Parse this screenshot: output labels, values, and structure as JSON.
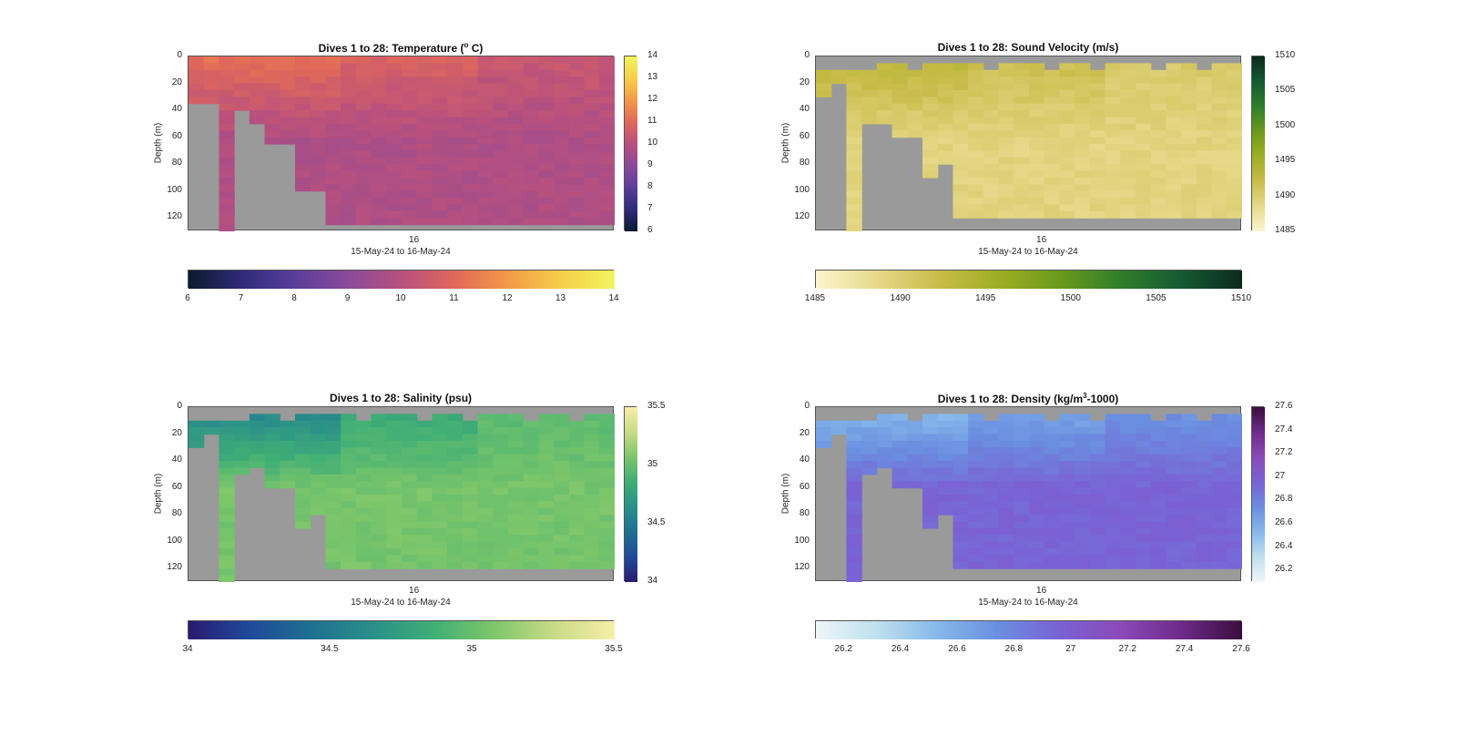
{
  "chart_data": [
    {
      "type": "heatmap",
      "title_main": "Dives 1 to 28: Temperature (",
      "title_sup": "o",
      "title_end": " C)",
      "ylabel": "Depth (m)",
      "xtick": "16",
      "xsub": "15-May-24 to 16-May-24",
      "yticks": [
        "0",
        "20",
        "40",
        "60",
        "80",
        "100",
        "120"
      ],
      "ylim": [
        0,
        130
      ],
      "vticks": [
        "14",
        "13",
        "12",
        "11",
        "10",
        "9",
        "8",
        "7",
        "6"
      ],
      "hticks": [
        "6",
        "7",
        "8",
        "9",
        "10",
        "11",
        "12",
        "13",
        "14"
      ],
      "clim": [
        6,
        14
      ],
      "colormap": [
        "#0a1a2e",
        "#2f2a7a",
        "#5a3e9a",
        "#8a4a9a",
        "#b8507e",
        "#e0685a",
        "#f29a48",
        "#f6cf4a",
        "#f2f45e"
      ],
      "surface": [
        11.2,
        10.8,
        10.4
      ],
      "deep": 9.8,
      "bottom": [
        36,
        36,
        130,
        40,
        52,
        64,
        64,
        100,
        98,
        126,
        126,
        126,
        126,
        126,
        126,
        126,
        126,
        126,
        126,
        126,
        126,
        126,
        126,
        126,
        126,
        126,
        126,
        126
      ],
      "top": [
        0,
        0,
        0,
        0,
        0,
        0,
        0,
        0,
        0,
        0,
        0,
        0,
        0,
        0,
        0,
        0,
        0,
        0,
        0,
        0,
        0,
        0,
        0,
        0,
        0,
        0,
        0,
        0
      ]
    },
    {
      "type": "heatmap",
      "title_main": "Dives 1 to 28: Sound Velocity (m/s)",
      "title_sup": "",
      "title_end": "",
      "ylabel": "Depth (m)",
      "xtick": "16",
      "xsub": "15-May-24 to 16-May-24",
      "yticks": [
        "0",
        "20",
        "40",
        "60",
        "80",
        "100",
        "120"
      ],
      "ylim": [
        0,
        130
      ],
      "vticks": [
        "1510",
        "1505",
        "1500",
        "1495",
        "1490",
        "1485"
      ],
      "hticks": [
        "1485",
        "1490",
        "1495",
        "1500",
        "1505",
        "1510"
      ],
      "clim": [
        1485,
        1510
      ],
      "colormap": [
        "#fbf5cf",
        "#e6d98a",
        "#c9bc4a",
        "#9eae24",
        "#6a9a1c",
        "#2f7e2a",
        "#155a32",
        "#0c2a1c"
      ],
      "surface": [
        1493.5,
        1492.0,
        1490.5
      ],
      "deep": 1489.2,
      "bottom": [
        30,
        20,
        130,
        52,
        50,
        62,
        62,
        90,
        82,
        118,
        120,
        118,
        120,
        118,
        120,
        118,
        120,
        118,
        120,
        118,
        120,
        118,
        120,
        118,
        120,
        118,
        120,
        118
      ],
      "top": [
        8,
        8,
        10,
        10,
        6,
        6,
        8,
        6,
        4,
        6,
        4,
        8,
        6,
        4,
        6,
        8,
        4,
        6,
        8,
        6,
        4,
        6,
        8,
        6,
        4,
        8,
        6,
        4
      ]
    },
    {
      "type": "heatmap",
      "title_main": "Dives 1 to 28: Salinity (psu)",
      "title_sup": "",
      "title_end": "",
      "ylabel": "Depth (m)",
      "xtick": "16",
      "xsub": "15-May-24 to 16-May-24",
      "yticks": [
        "0",
        "20",
        "40",
        "60",
        "80",
        "100",
        "120"
      ],
      "ylim": [
        0,
        130
      ],
      "vticks": [
        "35.5",
        "35",
        "34.5",
        "34"
      ],
      "hticks": [
        "34",
        "34.5",
        "35",
        "35.5"
      ],
      "clim": [
        34,
        35.5
      ],
      "colormap": [
        "#2a1a6e",
        "#1f4a9a",
        "#1f6f92",
        "#2a8f8a",
        "#3fae76",
        "#7cc66a",
        "#c9db86",
        "#f7eea8"
      ],
      "surface": [
        34.55,
        34.8,
        34.95
      ],
      "deep": 35.05,
      "bottom": [
        30,
        20,
        130,
        48,
        44,
        58,
        58,
        88,
        80,
        120,
        120,
        118,
        120,
        118,
        120,
        118,
        120,
        118,
        120,
        118,
        120,
        118,
        120,
        118,
        120,
        118,
        120,
        118
      ],
      "top": [
        8,
        8,
        10,
        10,
        6,
        6,
        8,
        6,
        4,
        6,
        4,
        8,
        6,
        4,
        6,
        8,
        4,
        6,
        8,
        6,
        4,
        6,
        8,
        6,
        4,
        8,
        6,
        4
      ]
    },
    {
      "type": "heatmap",
      "title_main": "Dives 1 to 28: Density (kg/m",
      "title_sup": "3",
      "title_end": "-1000)",
      "ylabel": "Depth (m)",
      "xtick": "16",
      "xsub": "15-May-24 to 16-May-24",
      "yticks": [
        "0",
        "20",
        "40",
        "60",
        "80",
        "100",
        "120"
      ],
      "ylim": [
        0,
        130
      ],
      "vticks": [
        "27.6",
        "27.4",
        "27.2",
        "27",
        "26.8",
        "26.6",
        "26.4",
        "26.2"
      ],
      "hticks": [
        "26.2",
        "26.4",
        "26.6",
        "26.8",
        "27",
        "27.2",
        "27.4",
        "27.6"
      ],
      "clim": [
        26.1,
        27.6
      ],
      "colormap": [
        "#eef6f8",
        "#bfe0ee",
        "#86b8ea",
        "#6a8ee0",
        "#7a62d4",
        "#8a4ab8",
        "#6e2a8a",
        "#3a0e3e"
      ],
      "surface": [
        26.5,
        26.6,
        26.7
      ],
      "deep": 26.95,
      "bottom": [
        30,
        20,
        130,
        48,
        44,
        58,
        58,
        88,
        80,
        120,
        120,
        118,
        120,
        118,
        120,
        118,
        120,
        118,
        120,
        118,
        120,
        118,
        120,
        118,
        120,
        118,
        120,
        118
      ],
      "top": [
        8,
        8,
        10,
        10,
        6,
        6,
        8,
        6,
        4,
        6,
        4,
        8,
        6,
        4,
        6,
        8,
        4,
        6,
        8,
        6,
        4,
        6,
        8,
        6,
        4,
        8,
        6,
        4
      ]
    }
  ]
}
